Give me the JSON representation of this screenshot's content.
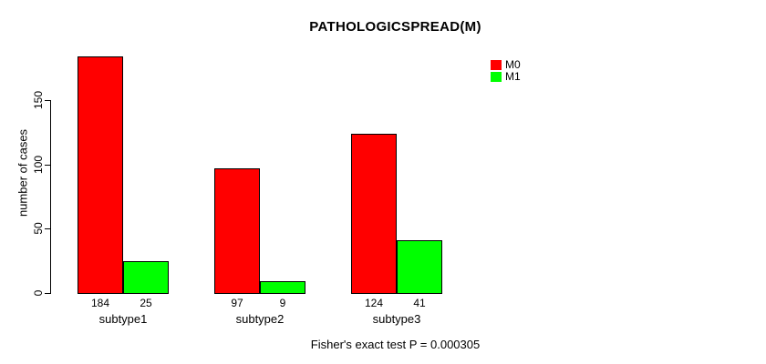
{
  "chart_data": {
    "type": "bar",
    "title": "PATHOLOGICSPREAD(M)",
    "ylabel": "number of cases",
    "xlabel": "",
    "categories": [
      "subtype1",
      "subtype2",
      "subtype3"
    ],
    "series": [
      {
        "name": "M0",
        "color": "#ff0000",
        "values": [
          184,
          97,
          124
        ]
      },
      {
        "name": "M1",
        "color": "#00ff00",
        "values": [
          25,
          9,
          41
        ]
      }
    ],
    "yticks": [
      0,
      50,
      100,
      150
    ],
    "ylim": [
      0,
      190
    ],
    "bar_outline_color": "#000000",
    "grid": false,
    "legend_position": "top-right",
    "show_value_labels_below_bars": true,
    "annotation": "Fisher's exact test P = 0.000305"
  }
}
